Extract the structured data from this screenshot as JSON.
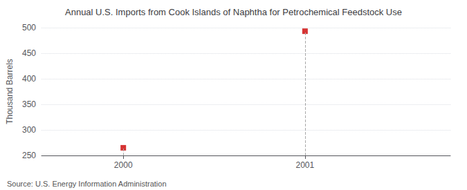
{
  "chart_data": {
    "type": "scatter",
    "title": "Annual U.S. Imports from Cook Islands of Naphtha for Petrochemical Feedstock Use",
    "ylabel": "Thousand Barrels",
    "x": [
      2000,
      2001
    ],
    "values": [
      265,
      493
    ],
    "color": "#cc0000",
    "marker": "square",
    "xlim": [
      1999.55,
      2001.8
    ],
    "xticks": [
      2000,
      2001
    ],
    "ylim": [
      250,
      500
    ],
    "yticks": [
      250,
      300,
      350,
      400,
      450,
      500
    ],
    "grid": true,
    "annotations": [
      "Source: U.S. Energy Information Administration"
    ]
  }
}
